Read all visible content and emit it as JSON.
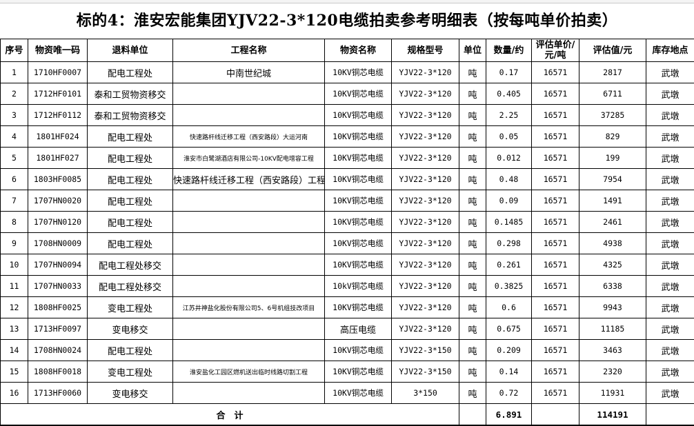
{
  "title": "标的4：淮安宏能集团YJV22-3*120电缆拍卖参考明细表（按每吨单价拍卖）",
  "headers": [
    "序号",
    "物资唯一码",
    "退料单位",
    "工程名称",
    "物资名称",
    "规格型号",
    "单位",
    "数量/约",
    "评估单价/元/吨",
    "评估值/元",
    "库存地点"
  ],
  "rows": [
    [
      "1",
      "1710HF0007",
      "配电工程处",
      "中南世纪城",
      "10KV铜芯电缆",
      "YJV22-3*120",
      "吨",
      "0.17",
      "16571",
      "2817",
      "武墩"
    ],
    [
      "2",
      "1712HF0101",
      "泰和工贸物资移交",
      "",
      "10KV铜芯电缆",
      "YJV22-3*120",
      "吨",
      "0.405",
      "16571",
      "6711",
      "武墩"
    ],
    [
      "3",
      "1712HF0112",
      "泰和工贸物资移交",
      "",
      "10KV铜芯电缆",
      "YJV22-3*120",
      "吨",
      "2.25",
      "16571",
      "37285",
      "武墩"
    ],
    [
      "4",
      "1801HF024",
      "配电工程处",
      "快速路杆线迁移工程（西安路段）大运河南",
      "10KV铜芯电缆",
      "YJV22-3*120",
      "吨",
      "0.05",
      "16571",
      "829",
      "武墩"
    ],
    [
      "5",
      "1801HF027",
      "配电工程处",
      "淮安市白鹭湖酒店有限公司-10KV配电增容工程",
      "10KV铜芯电缆",
      "YJV22-3*120",
      "吨",
      "0.012",
      "16571",
      "199",
      "武墩"
    ],
    [
      "6",
      "1803HF0085",
      "配电工程处",
      "快速路杆线迁移工程（西安路段）工程",
      "10KV铜芯电缆",
      "YJV22-3*120",
      "吨",
      "0.48",
      "16571",
      "7954",
      "武墩"
    ],
    [
      "7",
      "1707HN0020",
      "配电工程处",
      "",
      "10KV铜芯电缆",
      "YJV22-3*120",
      "吨",
      "0.09",
      "16571",
      "1491",
      "武墩"
    ],
    [
      "8",
      "1707HN0120",
      "配电工程处",
      "",
      "10KV铜芯电缆",
      "YJV22-3*120",
      "吨",
      "0.1485",
      "16571",
      "2461",
      "武墩"
    ],
    [
      "9",
      "1708HN0009",
      "配电工程处",
      "",
      "10KV铜芯电缆",
      "YJV22-3*120",
      "吨",
      "0.298",
      "16571",
      "4938",
      "武墩"
    ],
    [
      "10",
      "1707HN0094",
      "配电工程处移交",
      "",
      "10KV铜芯电缆",
      "YJV22-3*120",
      "吨",
      "0.261",
      "16571",
      "4325",
      "武墩"
    ],
    [
      "11",
      "1707HN0033",
      "配电工程处移交",
      "",
      "10kV铜芯电缆",
      "YJV22-3*120",
      "吨",
      "0.3825",
      "16571",
      "6338",
      "武墩"
    ],
    [
      "12",
      "1808HF0025",
      "变电工程处",
      "江苏井神盐化股份有限公司5、6号机组技改项目",
      "10KV铜芯电缆",
      "YJV22-3*120",
      "吨",
      "0.6",
      "16571",
      "9943",
      "武墩"
    ],
    [
      "13",
      "1713HF0097",
      "变电移交",
      "",
      "高压电缆",
      "YJV22-3*120",
      "吨",
      "0.675",
      "16571",
      "11185",
      "武墩"
    ],
    [
      "14",
      "1708HN0024",
      "配电工程处",
      "",
      "10KV铜芯电缆",
      "YJV22-3*150",
      "吨",
      "0.209",
      "16571",
      "3463",
      "武墩"
    ],
    [
      "15",
      "1808HF0018",
      "变电工程处",
      "淮安盐化工园区燃机送出临时线路切割工程",
      "10KV铜芯电缆",
      "YJV22-3*150",
      "吨",
      "0.14",
      "16571",
      "2320",
      "武墩"
    ],
    [
      "16",
      "1713HF0060",
      "变电移交",
      "",
      "10KV铜芯电缆",
      "3*150",
      "吨",
      "0.72",
      "16571",
      "11931",
      "武墩"
    ]
  ],
  "total": {
    "label": "合　计",
    "quantity": "6.891",
    "value": "114191"
  }
}
